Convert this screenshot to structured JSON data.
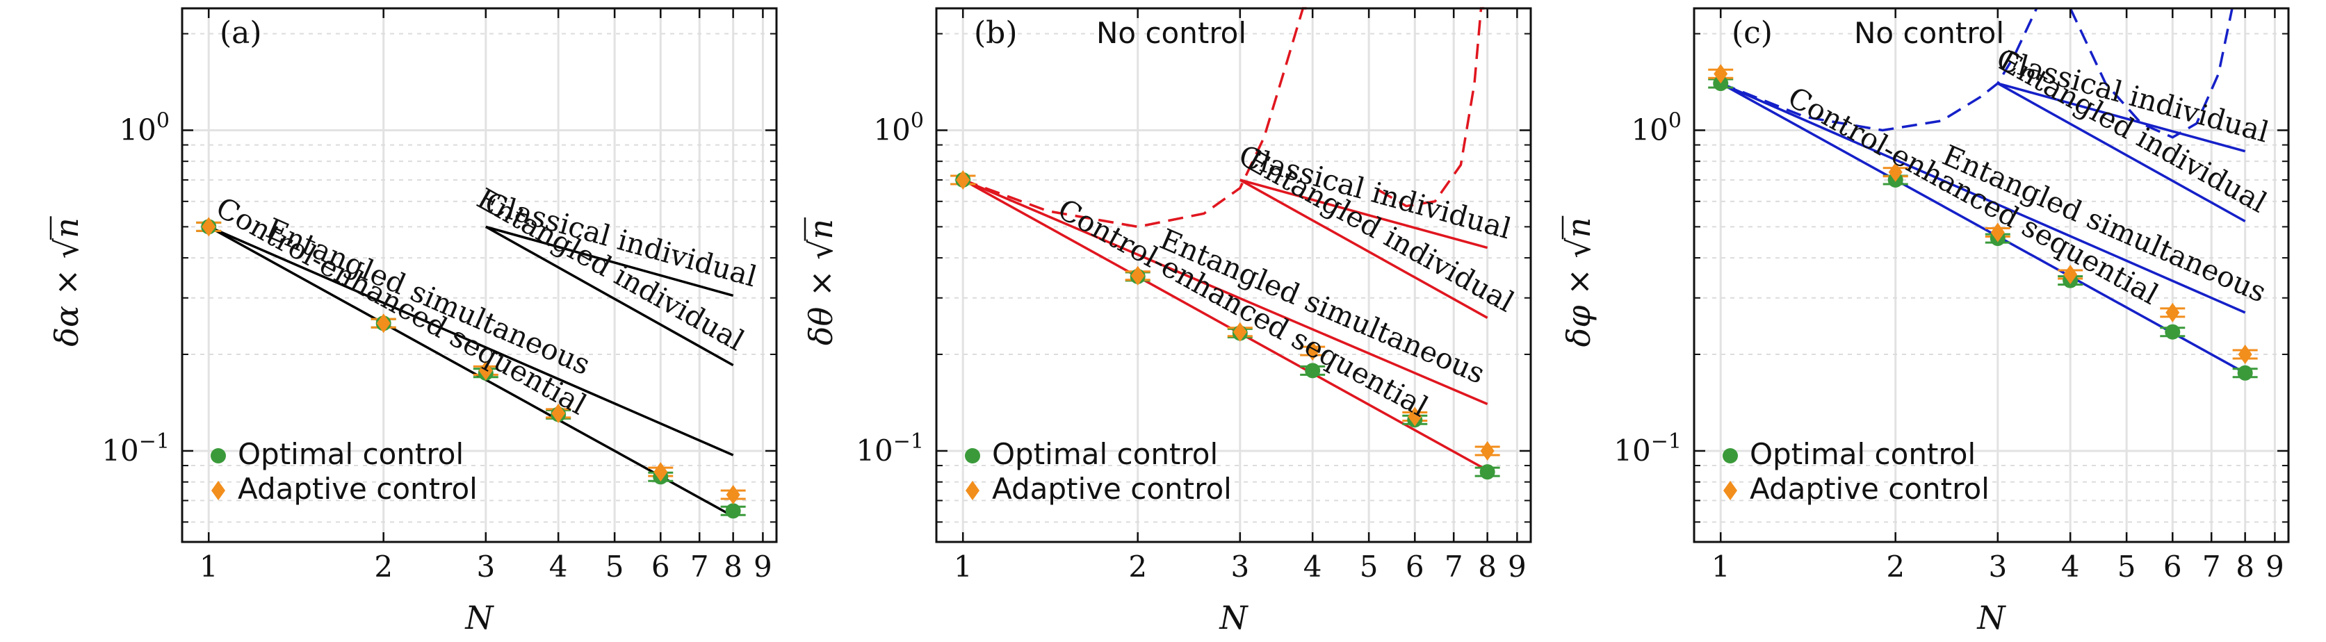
{
  "x_tick_labels": [
    "1",
    "2",
    "3",
    "4",
    "5",
    "6",
    "7",
    "8",
    "9"
  ],
  "legend": {
    "optimal": "Optimal control",
    "adaptive": "Adaptive control"
  },
  "colors": {
    "optimal": "#3a9a3a",
    "adaptive": "#f28e1c",
    "panel_a_lines": "#000000",
    "panel_b_lines": "#e0161f",
    "panel_c_lines": "#1520c8"
  },
  "panels": [
    {
      "label": "(a)",
      "xlabel": "N",
      "ylabel_prefix": "δα × √",
      "ylabel_suffix": "n",
      "annotation": ""
    },
    {
      "label": "(b)",
      "xlabel": "N",
      "ylabel_prefix": "δθ × √",
      "ylabel_suffix": "n",
      "annotation": "No control"
    },
    {
      "label": "(c)",
      "xlabel": "N",
      "ylabel_prefix": "δφ × √",
      "ylabel_suffix": "n",
      "annotation": "No control"
    }
  ],
  "chart_data": [
    {
      "type": "line",
      "panel": "(a)",
      "x_scale": "log",
      "y_scale": "log",
      "xlim": [
        0.9,
        9.5
      ],
      "ylim": [
        0.052,
        2.4
      ],
      "grid": true,
      "legend_position": "bottom-left",
      "line_color": "#000000",
      "series": [
        {
          "name": "Control-enhanced sequential",
          "x": [
            1,
            8
          ],
          "y": [
            0.5,
            0.0625
          ]
        },
        {
          "name": "Entangled simultaneous",
          "x": [
            1,
            8
          ],
          "y": [
            0.5,
            0.097
          ]
        },
        {
          "name": "Entangled individual",
          "x": [
            3,
            8
          ],
          "y": [
            0.5,
            0.185
          ]
        },
        {
          "name": "Classical individual",
          "x": [
            3,
            8
          ],
          "y": [
            0.5,
            0.305
          ]
        }
      ],
      "markers": {
        "N": [
          1,
          2,
          3,
          4,
          6,
          8
        ],
        "optimal": [
          0.5,
          0.25,
          0.175,
          0.13,
          0.083,
          0.065
        ],
        "adaptive": [
          0.5,
          0.25,
          0.178,
          0.131,
          0.086,
          0.073
        ]
      }
    },
    {
      "type": "line",
      "panel": "(b)",
      "x_scale": "log",
      "y_scale": "log",
      "xlim": [
        0.9,
        9.5
      ],
      "ylim": [
        0.052,
        2.4
      ],
      "grid": true,
      "legend_position": "bottom-left",
      "line_color": "#e0161f",
      "series": [
        {
          "name": "Control-enhanced sequential",
          "x": [
            1,
            8
          ],
          "y": [
            0.7,
            0.087
          ]
        },
        {
          "name": "Entangled simultaneous",
          "x": [
            1,
            8
          ],
          "y": [
            0.7,
            0.14
          ]
        },
        {
          "name": "Entangled individual",
          "x": [
            3,
            8
          ],
          "y": [
            0.7,
            0.26
          ]
        },
        {
          "name": "Classical individual",
          "x": [
            3,
            8
          ],
          "y": [
            0.7,
            0.43
          ]
        }
      ],
      "no_control_curves": [
        {
          "x": [
            1.0,
            1.4,
            2.0,
            2.6,
            3.0,
            3.3,
            3.6,
            3.85,
            3.95
          ],
          "y": [
            0.7,
            0.56,
            0.5,
            0.55,
            0.66,
            0.95,
            1.6,
            2.6,
            3.5
          ]
        },
        {
          "x": [
            5.2,
            5.8,
            6.5,
            7.2,
            7.6,
            7.8,
            7.9
          ],
          "y": [
            0.65,
            0.58,
            0.6,
            0.78,
            1.4,
            2.8,
            3.5
          ]
        }
      ],
      "markers": {
        "N": [
          1,
          2,
          3,
          4,
          6,
          8
        ],
        "optimal": [
          0.7,
          0.35,
          0.233,
          0.178,
          0.125,
          0.086
        ],
        "adaptive": [
          0.7,
          0.352,
          0.235,
          0.205,
          0.128,
          0.1
        ]
      }
    },
    {
      "type": "line",
      "panel": "(c)",
      "x_scale": "log",
      "y_scale": "log",
      "xlim": [
        0.9,
        9.5
      ],
      "ylim": [
        0.052,
        2.4
      ],
      "grid": true,
      "legend_position": "bottom-left",
      "line_color": "#1520c8",
      "series": [
        {
          "name": "Control-enhanced sequential",
          "x": [
            1,
            8
          ],
          "y": [
            1.4,
            0.175
          ]
        },
        {
          "name": "Entangled simultaneous",
          "x": [
            1,
            8
          ],
          "y": [
            1.4,
            0.27
          ]
        },
        {
          "name": "Entangled individual",
          "x": [
            3,
            8
          ],
          "y": [
            1.4,
            0.52
          ]
        },
        {
          "name": "Classical individual",
          "x": [
            3,
            8
          ],
          "y": [
            1.4,
            0.86
          ]
        }
      ],
      "no_control_curves": [
        {
          "x": [
            1.0,
            1.4,
            1.9,
            2.4,
            2.8,
            3.0,
            3.2,
            3.5
          ],
          "y": [
            1.4,
            1.1,
            1.0,
            1.07,
            1.27,
            1.4,
            1.7,
            2.4
          ]
        },
        {
          "x": [
            4.0,
            4.6,
            5.3,
            6.0,
            6.6,
            7.2,
            7.6
          ],
          "y": [
            2.4,
            1.4,
            1.05,
            0.95,
            1.05,
            1.5,
            2.4
          ]
        }
      ],
      "markers": {
        "N": [
          1,
          2,
          3,
          4,
          6,
          8
        ],
        "optimal": [
          1.4,
          0.7,
          0.46,
          0.34,
          0.235,
          0.175
        ],
        "adaptive": [
          1.5,
          0.74,
          0.48,
          0.355,
          0.27,
          0.2
        ]
      }
    }
  ]
}
